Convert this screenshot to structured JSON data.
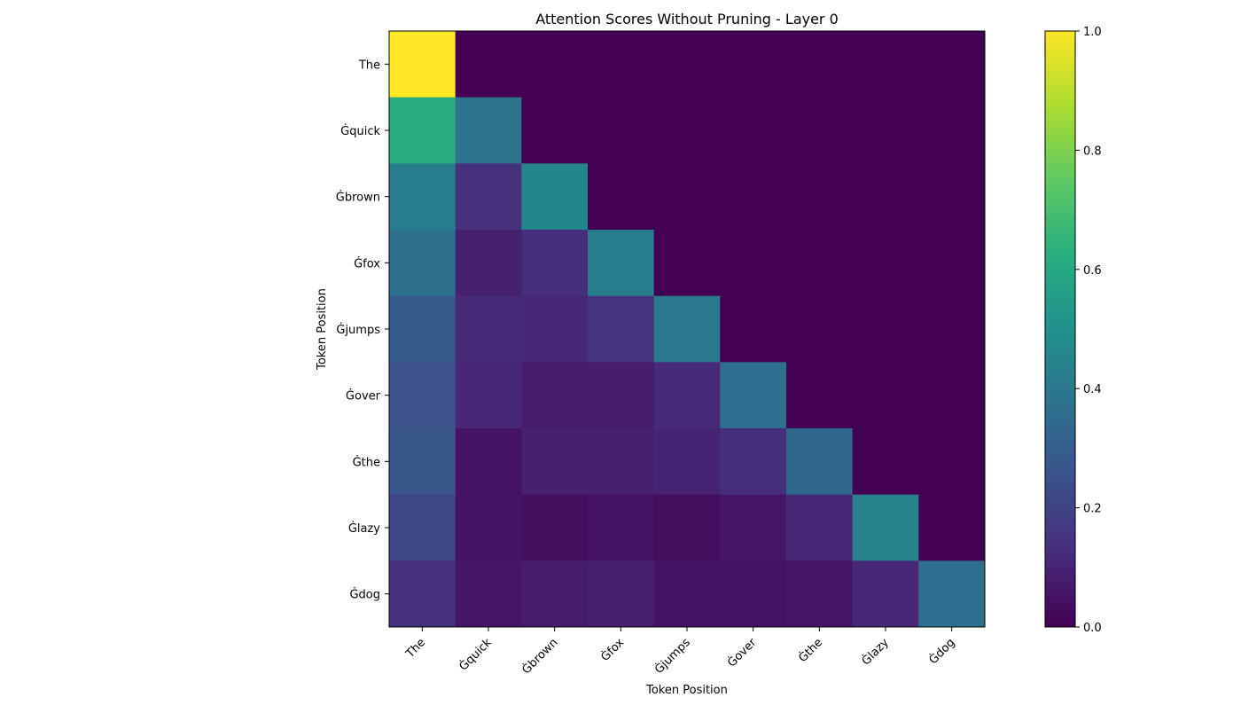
{
  "chart_data": {
    "type": "heatmap",
    "title": "Attention Scores Without Pruning - Layer 0",
    "xlabel": "Token Position",
    "ylabel": "Token Position",
    "x_tokens": [
      "The",
      "Ġquick",
      "Ġbrown",
      "Ġfox",
      "Ġjumps",
      "Ġover",
      "Ġthe",
      "Ġlazy",
      "Ġdog"
    ],
    "y_tokens": [
      "The",
      "Ġquick",
      "Ġbrown",
      "Ġfox",
      "Ġjumps",
      "Ġover",
      "Ġthe",
      "Ġlazy",
      "Ġdog"
    ],
    "values": [
      [
        1.0,
        0.0,
        0.0,
        0.0,
        0.0,
        0.0,
        0.0,
        0.0,
        0.0
      ],
      [
        0.62,
        0.38,
        0.0,
        0.0,
        0.0,
        0.0,
        0.0,
        0.0,
        0.0
      ],
      [
        0.42,
        0.14,
        0.45,
        0.0,
        0.0,
        0.0,
        0.0,
        0.0,
        0.0
      ],
      [
        0.37,
        0.09,
        0.13,
        0.42,
        0.0,
        0.0,
        0.0,
        0.0,
        0.0
      ],
      [
        0.28,
        0.12,
        0.11,
        0.15,
        0.4,
        0.0,
        0.0,
        0.0,
        0.0
      ],
      [
        0.25,
        0.11,
        0.08,
        0.08,
        0.12,
        0.36,
        0.0,
        0.0,
        0.0
      ],
      [
        0.27,
        0.05,
        0.09,
        0.09,
        0.1,
        0.13,
        0.33,
        0.0,
        0.0
      ],
      [
        0.21,
        0.05,
        0.04,
        0.05,
        0.04,
        0.06,
        0.11,
        0.44,
        0.0
      ],
      [
        0.14,
        0.06,
        0.08,
        0.09,
        0.05,
        0.05,
        0.06,
        0.11,
        0.36
      ]
    ],
    "colormap": "viridis",
    "vmin": 0.0,
    "vmax": 1.0,
    "colorbar_ticks": [
      "0.0",
      "0.2",
      "0.4",
      "0.6",
      "0.8",
      "1.0"
    ],
    "grid": false
  }
}
